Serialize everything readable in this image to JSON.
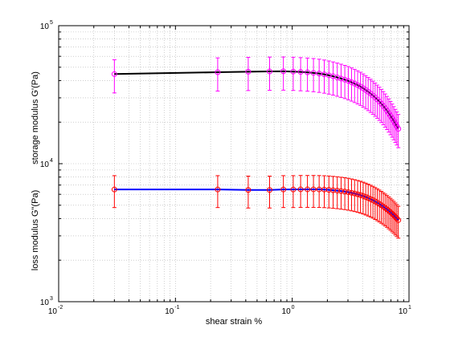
{
  "chart_data": {
    "type": "scatter",
    "xlabel": "shear strain %",
    "ylabels": [
      "storage modulus G'(Pa)",
      "loss modulus G\"(Pa)"
    ],
    "xscale": "log",
    "yscale": "log",
    "xlim": [
      0.01,
      10
    ],
    "ylim": [
      1000,
      100000
    ],
    "grid": true,
    "x_ticks": [
      {
        "base": "10",
        "exp": "-2",
        "value": 0.01
      },
      {
        "base": "10",
        "exp": "-1",
        "value": 0.1
      },
      {
        "base": "10",
        "exp": "0",
        "value": 1
      },
      {
        "base": "10",
        "exp": "1",
        "value": 10
      }
    ],
    "y_ticks": [
      {
        "base": "10",
        "exp": "3",
        "value": 1000
      },
      {
        "base": "10",
        "exp": "4",
        "value": 10000
      },
      {
        "base": "10",
        "exp": "5",
        "value": 100000
      }
    ],
    "x": [
      0.03,
      0.23,
      0.42,
      0.64,
      0.84,
      1.02,
      1.18,
      1.35,
      1.52,
      1.7,
      1.88,
      2.06,
      2.24,
      2.43,
      2.62,
      2.82,
      3.02,
      3.22,
      3.42,
      3.63,
      3.84,
      4.05,
      4.26,
      4.47,
      4.69,
      4.91,
      5.13,
      5.35,
      5.57,
      5.8,
      6.02,
      6.25,
      6.48,
      6.71,
      6.94,
      7.17,
      7.4,
      7.63,
      7.86,
      8.1
    ],
    "series": [
      {
        "line_color": "#000000",
        "marker_color": "#ff00ff",
        "values": [
          44600,
          46000,
          46400,
          46600,
          46700,
          46500,
          46200,
          45900,
          45500,
          45000,
          44400,
          43700,
          43000,
          42200,
          41400,
          40600,
          39800,
          38900,
          38000,
          37100,
          36200,
          35200,
          34200,
          33200,
          32200,
          31200,
          30200,
          29200,
          28200,
          27200,
          26200,
          25200,
          24200,
          23200,
          22200,
          21300,
          20400,
          19500,
          18700,
          17900
        ],
        "error_pct": 0.27
      },
      {
        "line_color": "#0000ff",
        "marker_color": "#ff0000",
        "values": [
          6500,
          6500,
          6450,
          6450,
          6500,
          6500,
          6520,
          6520,
          6520,
          6510,
          6490,
          6460,
          6420,
          6380,
          6330,
          6280,
          6220,
          6150,
          6080,
          6000,
          5920,
          5830,
          5740,
          5640,
          5540,
          5440,
          5330,
          5220,
          5110,
          5000,
          4890,
          4780,
          4670,
          4560,
          4450,
          4340,
          4230,
          4120,
          4010,
          3900
        ],
        "error_pct": 0.26
      }
    ]
  }
}
